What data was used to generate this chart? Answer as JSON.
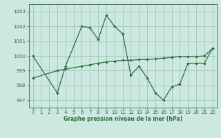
{
  "xlabel": "Graphe pression niveau de la mer (hPa)",
  "bg_color": "#cde8e0",
  "grid_color": "#9dc8bc",
  "line_color": "#2d6e3a",
  "ylim": [
    996.5,
    1003.5
  ],
  "xlim": [
    -0.5,
    22.5
  ],
  "yticks": [
    997,
    998,
    999,
    1000,
    1001,
    1002,
    1003
  ],
  "xticks": [
    0,
    1,
    2,
    3,
    4,
    5,
    6,
    7,
    8,
    9,
    10,
    11,
    12,
    13,
    14,
    15,
    16,
    17,
    18,
    19,
    20,
    21,
    22
  ],
  "series1_x": [
    0,
    3,
    4,
    6,
    7,
    8,
    9,
    10,
    11,
    12,
    13,
    14,
    15,
    16,
    17,
    18,
    19,
    20,
    21,
    22
  ],
  "series1_y": [
    1000.0,
    997.5,
    999.3,
    1002.0,
    1001.9,
    1001.1,
    1002.75,
    1002.0,
    1001.5,
    998.7,
    999.3,
    998.5,
    997.5,
    997.0,
    997.9,
    998.1,
    999.5,
    999.5,
    999.5,
    1000.5
  ],
  "series2_x": [
    0,
    3,
    4,
    6,
    7,
    8,
    9,
    10,
    11,
    12,
    13,
    14,
    15,
    16,
    17,
    18,
    19,
    20,
    21,
    22
  ],
  "series2_y": [
    998.5,
    999.0,
    999.1,
    999.3,
    999.4,
    999.5,
    999.6,
    999.65,
    999.7,
    999.7,
    999.75,
    999.75,
    999.8,
    999.85,
    999.9,
    999.95,
    999.95,
    999.95,
    1000.0,
    1000.5
  ]
}
